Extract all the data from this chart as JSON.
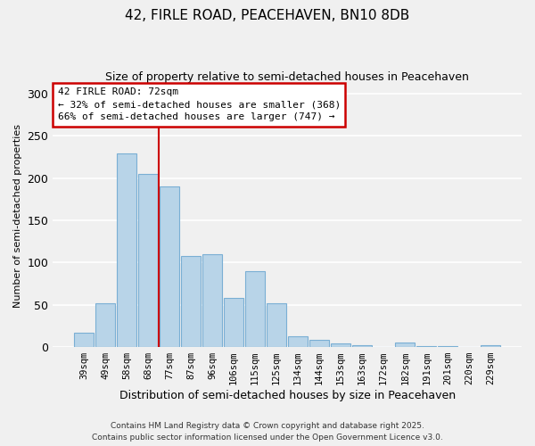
{
  "title": "42, FIRLE ROAD, PEACEHAVEN, BN10 8DB",
  "subtitle": "Size of property relative to semi-detached houses in Peacehaven",
  "xlabel": "Distribution of semi-detached houses by size in Peacehaven",
  "ylabel": "Number of semi-detached properties",
  "categories": [
    "39sqm",
    "49sqm",
    "58sqm",
    "68sqm",
    "77sqm",
    "87sqm",
    "96sqm",
    "106sqm",
    "115sqm",
    "125sqm",
    "134sqm",
    "144sqm",
    "153sqm",
    "163sqm",
    "172sqm",
    "182sqm",
    "191sqm",
    "201sqm",
    "220sqm",
    "229sqm"
  ],
  "values": [
    17,
    52,
    229,
    205,
    190,
    108,
    110,
    58,
    90,
    52,
    13,
    9,
    4,
    2,
    0,
    5,
    1,
    1,
    0,
    2
  ],
  "bar_color": "#b8d4e8",
  "bar_edge_color": "#7aafd4",
  "vline_x": 3.5,
  "vline_color": "#cc0000",
  "annotation_title": "42 FIRLE ROAD: 72sqm",
  "annotation_line2": "← 32% of semi-detached houses are smaller (368)",
  "annotation_line3": "66% of semi-detached houses are larger (747) →",
  "annotation_box_color": "#ffffff",
  "annotation_box_edge": "#cc0000",
  "ylim": [
    0,
    310
  ],
  "yticks": [
    0,
    50,
    100,
    150,
    200,
    250,
    300
  ],
  "footnote1": "Contains HM Land Registry data © Crown copyright and database right 2025.",
  "footnote2": "Contains public sector information licensed under the Open Government Licence v3.0.",
  "background_color": "#f0f0f0",
  "grid_color": "#ffffff"
}
